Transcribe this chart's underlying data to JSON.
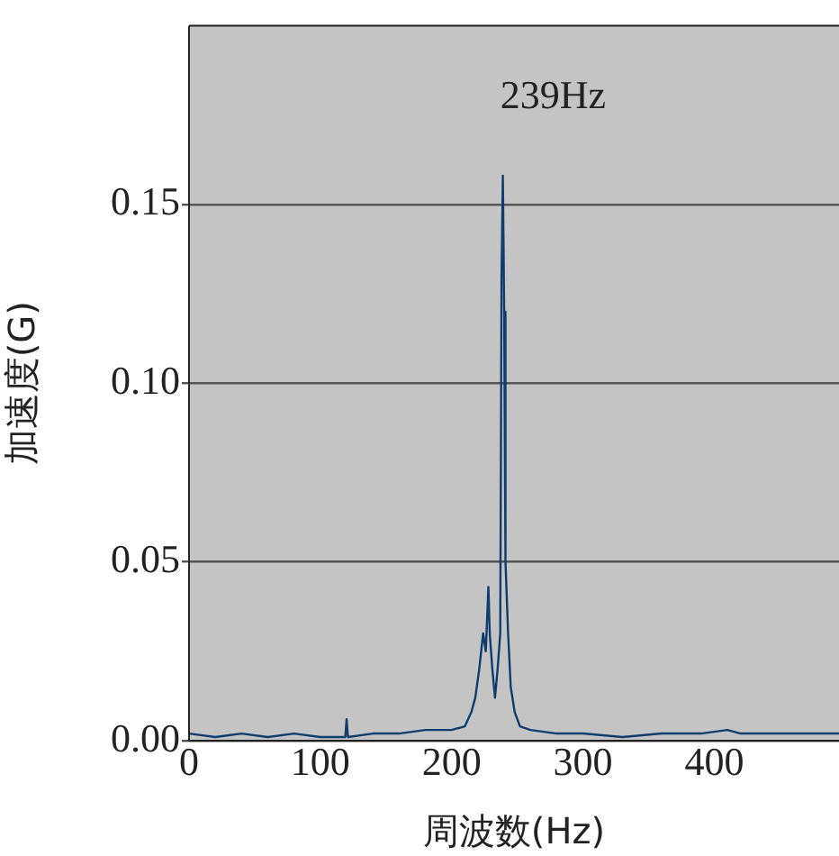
{
  "chart_data": {
    "type": "line",
    "xlabel": "周波数(Hz)",
    "ylabel": "加速度(G)",
    "xlim": [
      0,
      495
    ],
    "xticks": [
      0,
      100,
      200,
      300,
      400
    ],
    "ylim": [
      0,
      0.2
    ],
    "yticks": [
      {
        "value": 0,
        "label": "0.00"
      },
      0.05,
      {
        "value": 0.1,
        "label": "0.10"
      },
      0.15
    ],
    "grid": "y",
    "legend": false,
    "marker": "none",
    "line_style": "solid",
    "annotations": [
      "239Hz"
    ],
    "series": [
      {
        "color": "#0e3d6e",
        "x": [
          0,
          20,
          40,
          60,
          80,
          100,
          119,
          120,
          121,
          140,
          160,
          180,
          200,
          210,
          215,
          218,
          221,
          224,
          226,
          228,
          229,
          231,
          233,
          235,
          237,
          238,
          239,
          240,
          241,
          243,
          245,
          248,
          252,
          260,
          280,
          300,
          330,
          360,
          390,
          410,
          420,
          450,
          480,
          495
        ],
        "values": [
          0.002,
          0.001,
          0.002,
          0.001,
          0.002,
          0.001,
          0.001,
          0.006,
          0.001,
          0.002,
          0.002,
          0.003,
          0.003,
          0.004,
          0.008,
          0.012,
          0.02,
          0.03,
          0.025,
          0.043,
          0.03,
          0.02,
          0.012,
          0.02,
          0.03,
          0.13,
          0.158,
          0.12,
          0.05,
          0.03,
          0.015,
          0.008,
          0.004,
          0.003,
          0.002,
          0.002,
          0.001,
          0.002,
          0.002,
          0.003,
          0.002,
          0.002,
          0.002,
          0.002
        ]
      }
    ]
  }
}
